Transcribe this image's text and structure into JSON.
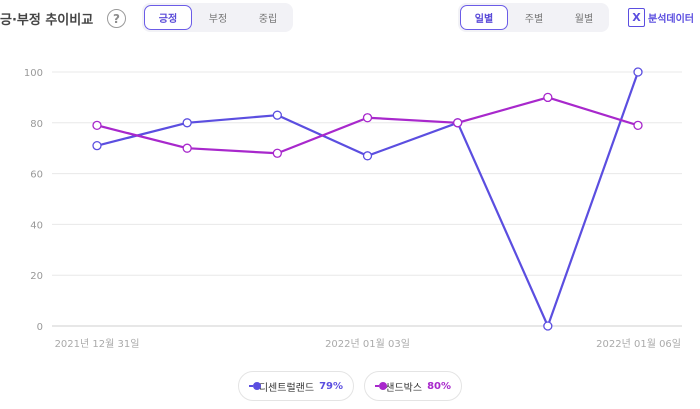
{
  "header": {
    "title": "긍·부정 추이비교",
    "help_symbol": "?",
    "sentiment_tabs": [
      {
        "label": "긍정",
        "active": true
      },
      {
        "label": "부정",
        "active": false
      },
      {
        "label": "중립",
        "active": false
      }
    ],
    "period_tabs": [
      {
        "label": "일별",
        "active": true
      },
      {
        "label": "주별",
        "active": false
      },
      {
        "label": "월별",
        "active": false
      }
    ],
    "excel_icon_label": "X",
    "excel_label": "분석데이터"
  },
  "legend": [
    {
      "name": "디센트럴랜드",
      "value": "79%",
      "color": "#5b4ee0"
    },
    {
      "name": "샌드박스",
      "value": "80%",
      "color": "#a828cc"
    }
  ],
  "chart_data": {
    "type": "line",
    "x": [
      "2021-12-31",
      "2022-01-01",
      "2022-01-02",
      "2022-01-03",
      "2022-01-04",
      "2022-01-05",
      "2022-01-06"
    ],
    "x_tick_labels": [
      "2021년 12월 31일",
      "",
      "",
      "2022년 01월 03일",
      "",
      "",
      "2022년 01월 06일"
    ],
    "y_ticks": [
      0,
      20,
      40,
      60,
      80,
      100
    ],
    "ylim": [
      0,
      100
    ],
    "grid": true,
    "series": [
      {
        "name": "디센트럴랜드",
        "color": "#5b4ee0",
        "values": [
          71,
          80,
          83,
          67,
          80,
          0,
          100
        ]
      },
      {
        "name": "샌드박스",
        "color": "#a828cc",
        "values": [
          79,
          70,
          68,
          82,
          80,
          90,
          79
        ]
      }
    ]
  }
}
